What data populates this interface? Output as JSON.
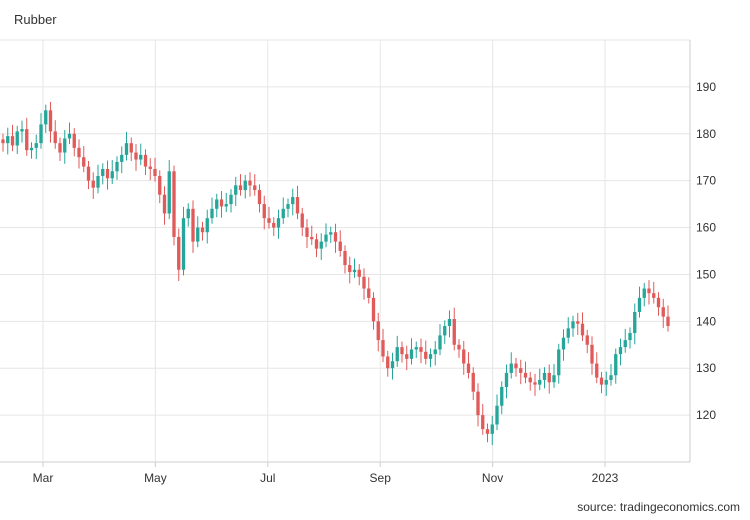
{
  "chart_data": {
    "type": "candlestick",
    "title": "Rubber",
    "source": "source: tradingeconomics.com",
    "ylim": [
      110,
      200
    ],
    "y_ticks": [
      120,
      130,
      140,
      150,
      160,
      170,
      180,
      190
    ],
    "x_ticks": [
      "Mar",
      "May",
      "Jul",
      "Sep",
      "Nov",
      "2023"
    ],
    "colors": {
      "up": "#26a69a",
      "down": "#e05a5a"
    },
    "series": [
      {
        "name": "Rubber",
        "closes": [
          178.0,
          179.5,
          177.5,
          180.5,
          181.0,
          176.5,
          177.0,
          178.0,
          182.0,
          185.0,
          180.5,
          178.0,
          176.0,
          179.0,
          180.0,
          177.0,
          175.0,
          173.0,
          170.0,
          168.5,
          171.0,
          172.5,
          170.5,
          172.0,
          174.0,
          175.5,
          178.0,
          176.0,
          174.5,
          175.5,
          173.0,
          172.5,
          171.0,
          167.0,
          163.0,
          172.0,
          158.0,
          151.0,
          162.0,
          164.0,
          157.0,
          160.0,
          159.0,
          162.0,
          164.0,
          166.0,
          164.5,
          165.0,
          167.0,
          169.0,
          168.0,
          170.0,
          169.0,
          168.0,
          165.0,
          162.0,
          161.0,
          160.0,
          162.0,
          164.0,
          165.0,
          166.5,
          163.0,
          160.0,
          158.0,
          157.5,
          155.5,
          157.0,
          158.5,
          159.0,
          157.0,
          155.0,
          152.0,
          150.5,
          151.0,
          149.5,
          147.0,
          145.0,
          140.0,
          136.0,
          132.5,
          130.0,
          131.5,
          134.5,
          133.0,
          132.0,
          134.0,
          134.5,
          133.5,
          132.0,
          133.0,
          134.0,
          137.0,
          139.0,
          140.5,
          135.0,
          134.0,
          131.0,
          129.0,
          125.0,
          120.0,
          117.0,
          116.0,
          118.0,
          122.0,
          126.0,
          129.0,
          131.0,
          130.0,
          129.0,
          128.0,
          127.0,
          126.5,
          127.5,
          129.0,
          127.0,
          128.5,
          134.0,
          136.5,
          138.5,
          140.0,
          139.5,
          137.0,
          135.0,
          131.0,
          128.0,
          126.5,
          127.5,
          128.5,
          133.0,
          134.5,
          136.0,
          137.5,
          142.0,
          145.0,
          147.0,
          146.0,
          145.0,
          143.0,
          141.0,
          139.0
        ]
      }
    ]
  }
}
